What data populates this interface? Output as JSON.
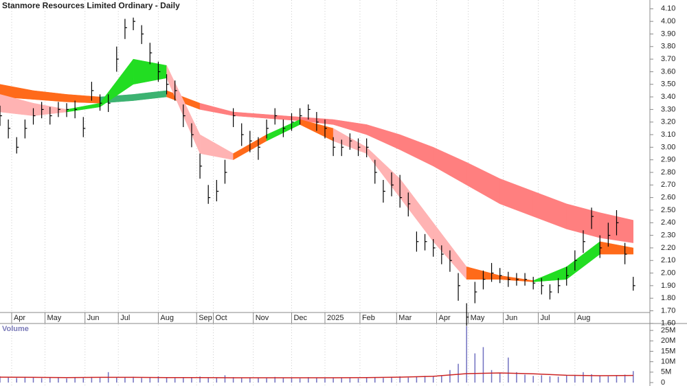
{
  "chart_data": [
    {
      "type": "ohlc",
      "title": "Stanmore Resources Limited Ordinary - Daily",
      "color": "#000000",
      "x": [
        0,
        5,
        10,
        15,
        20,
        25,
        30,
        35,
        40,
        45,
        50,
        55,
        60,
        65,
        70,
        75,
        80,
        85,
        90,
        95,
        100,
        105,
        110,
        115,
        120,
        125,
        130,
        135,
        140,
        145,
        150,
        155,
        160,
        165,
        170,
        175,
        180,
        185,
        190,
        195,
        200,
        205,
        210,
        215,
        220,
        225,
        230,
        235,
        240,
        245,
        250,
        255,
        260,
        265,
        270,
        275,
        280,
        285,
        290,
        295,
        300,
        305,
        310,
        315,
        320,
        325,
        330,
        335,
        340,
        345,
        350,
        355,
        360,
        365,
        370,
        375,
        380
      ],
      "high": [
        3.33,
        3.22,
        3.08,
        3.22,
        3.31,
        3.36,
        3.32,
        3.36,
        3.35,
        3.37,
        3.24,
        3.52,
        3.42,
        3.42,
        3.8,
        4.02,
        4.03,
        3.97,
        3.83,
        3.68,
        3.58,
        3.53,
        3.34,
        3.19,
        2.95,
        2.7,
        2.74,
        2.9,
        3.31,
        3.19,
        3.13,
        3.08,
        3.22,
        3.31,
        3.22,
        3.27,
        3.31,
        3.34,
        3.28,
        3.22,
        3.08,
        3.06,
        3.11,
        3.07,
        3.07,
        2.9,
        2.74,
        2.8,
        2.78,
        2.64,
        2.33,
        2.31,
        2.27,
        2.22,
        2.18,
        2.0,
        1.76,
        1.93,
        2.02,
        2.08,
        2.04,
        2.01,
        2.0,
        2.0,
        1.97,
        1.96,
        1.91,
        1.96,
        2.05,
        2.18,
        2.34,
        2.52,
        2.3,
        2.4,
        2.5,
        2.24,
        1.97
      ],
      "low": [
        3.17,
        3.07,
        2.95,
        3.07,
        3.18,
        3.23,
        3.18,
        3.24,
        3.24,
        3.23,
        3.08,
        3.37,
        3.29,
        3.28,
        3.6,
        3.86,
        3.93,
        3.82,
        3.66,
        3.52,
        3.42,
        3.37,
        3.16,
        3.0,
        2.75,
        2.55,
        2.57,
        2.71,
        3.16,
        3.01,
        2.96,
        2.9,
        3.07,
        3.18,
        3.08,
        3.13,
        3.18,
        3.22,
        3.13,
        3.07,
        2.93,
        2.93,
        2.98,
        2.93,
        2.92,
        2.71,
        2.56,
        2.61,
        2.52,
        2.45,
        2.17,
        2.18,
        2.13,
        2.07,
        2.01,
        1.78,
        1.58,
        1.76,
        1.87,
        1.93,
        1.92,
        1.89,
        1.9,
        1.9,
        1.87,
        1.83,
        1.79,
        1.84,
        1.9,
        2.02,
        2.16,
        2.35,
        2.12,
        2.21,
        2.3,
        2.07,
        1.86
      ],
      "close": [
        3.25,
        3.15,
        3.0,
        3.15,
        3.25,
        3.3,
        3.25,
        3.3,
        3.3,
        3.3,
        3.15,
        3.45,
        3.35,
        3.35,
        3.7,
        3.95,
        4.0,
        3.9,
        3.75,
        3.6,
        3.5,
        3.45,
        3.25,
        3.1,
        2.85,
        2.6,
        2.65,
        2.8,
        3.25,
        3.1,
        3.05,
        3.0,
        3.15,
        3.25,
        3.15,
        3.2,
        3.25,
        3.3,
        3.2,
        3.15,
        3.0,
        3.0,
        3.05,
        3.0,
        3.0,
        2.8,
        2.65,
        2.7,
        2.6,
        2.55,
        2.25,
        2.25,
        2.2,
        2.15,
        2.1,
        1.9,
        1.65,
        1.85,
        1.95,
        2.0,
        1.98,
        1.95,
        1.95,
        1.95,
        1.92,
        1.9,
        1.85,
        1.9,
        1.98,
        2.1,
        2.25,
        2.45,
        2.2,
        2.3,
        2.4,
        2.15,
        1.9
      ],
      "bands": [
        {
          "x": [
            0,
            20,
            40,
            60,
            80,
            100,
            120,
            140,
            160,
            180,
            200,
            220,
            240,
            260,
            280,
            300,
            320,
            340,
            360,
            380
          ],
          "upper": [
            3.5,
            3.45,
            3.42,
            3.4,
            3.42,
            3.45,
            3.35,
            3.28,
            3.26,
            3.24,
            3.22,
            3.18,
            3.1,
            3.0,
            2.88,
            2.75,
            2.65,
            2.55,
            2.48,
            2.42
          ],
          "lower": [
            3.4,
            3.38,
            3.36,
            3.35,
            3.37,
            3.4,
            3.3,
            3.25,
            3.23,
            3.21,
            3.18,
            3.1,
            2.98,
            2.85,
            2.7,
            2.55,
            2.45,
            2.35,
            2.28,
            2.24
          ],
          "segment_colors": [
            "#ff6a1a",
            "#ff6a1a",
            "#ff6a1a",
            "#3cb371",
            "#3cb371",
            "#ff6a1a",
            "#ff7f7f",
            "#ff7f7f",
            "#ff7f7f",
            "#ff7f7f",
            "#ff7f7f",
            "#ff7f7f",
            "#ff7f7f",
            "#ff7f7f",
            "#ff7f7f",
            "#ff7f7f",
            "#ff7f7f",
            "#ff7f7f",
            "#ff7f7f"
          ]
        },
        {
          "x": [
            0,
            20,
            40,
            60,
            80,
            100,
            120,
            140,
            160,
            180,
            200,
            220,
            240,
            260,
            280,
            300,
            320,
            340,
            360,
            380
          ],
          "upper": [
            3.42,
            3.35,
            3.3,
            3.35,
            3.7,
            3.65,
            3.1,
            2.95,
            3.1,
            3.22,
            3.15,
            3.0,
            2.75,
            2.4,
            2.05,
            1.98,
            1.94,
            2.05,
            2.25,
            2.2
          ],
          "lower": [
            3.28,
            3.25,
            3.28,
            3.32,
            3.5,
            3.55,
            2.95,
            2.9,
            3.05,
            3.18,
            3.05,
            2.95,
            2.6,
            2.25,
            1.95,
            1.95,
            1.93,
            1.95,
            2.15,
            2.15
          ],
          "segment_colors": [
            "#ffb3b3",
            "#ffb3b3",
            "#22dd22",
            "#22dd22",
            "#22dd22",
            "#ffb3b3",
            "#ffb3b3",
            "#ff6a1a",
            "#22dd22",
            "#ff6a1a",
            "#ffb3b3",
            "#ffb3b3",
            "#ffb3b3",
            "#ffb3b3",
            "#ff6a1a",
            "#ff6a1a",
            "#22dd22",
            "#22dd22",
            "#ff6a1a"
          ]
        }
      ],
      "xlim": [
        0,
        390
      ],
      "ylim": [
        1.55,
        4.17
      ],
      "xticks": [
        {
          "value": 7,
          "label": "Apr"
        },
        {
          "value": 27,
          "label": "May"
        },
        {
          "value": 51,
          "label": "Jun"
        },
        {
          "value": 71,
          "label": "Jul"
        },
        {
          "value": 95,
          "label": "Aug"
        },
        {
          "value": 118,
          "label": "Sep"
        },
        {
          "value": 128,
          "label": "Oct"
        },
        {
          "value": 152,
          "label": "Nov"
        },
        {
          "value": 175,
          "label": "Dec"
        },
        {
          "value": 195,
          "label": "2025"
        },
        {
          "value": 216,
          "label": "Feb"
        },
        {
          "value": 238,
          "label": "Mar"
        },
        {
          "value": 262,
          "label": "Apr"
        },
        {
          "value": 281,
          "label": "May"
        },
        {
          "value": 302,
          "label": "Jun"
        },
        {
          "value": 323,
          "label": "Jul"
        },
        {
          "value": 345,
          "label": "Aug"
        }
      ],
      "yticks": [
        {
          "value": 1.6,
          "label": "1.60"
        },
        {
          "value": 1.7,
          "label": "1.70"
        },
        {
          "value": 1.8,
          "label": "1.80"
        },
        {
          "value": 1.9,
          "label": "1.90"
        },
        {
          "value": 2.0,
          "label": "2.00"
        },
        {
          "value": 2.1,
          "label": "2.10"
        },
        {
          "value": 2.2,
          "label": "2.20"
        },
        {
          "value": 2.3,
          "label": "2.30"
        },
        {
          "value": 2.4,
          "label": "2.40"
        },
        {
          "value": 2.5,
          "label": "2.50"
        },
        {
          "value": 2.6,
          "label": "2.60"
        },
        {
          "value": 2.7,
          "label": "2.70"
        },
        {
          "value": 2.8,
          "label": "2.80"
        },
        {
          "value": 2.9,
          "label": "2.90"
        },
        {
          "value": 3.0,
          "label": "3.00"
        },
        {
          "value": 3.1,
          "label": "3.10"
        },
        {
          "value": 3.2,
          "label": "3.20"
        },
        {
          "value": 3.3,
          "label": "3.30"
        },
        {
          "value": 3.4,
          "label": "3.40"
        },
        {
          "value": 3.5,
          "label": "3.50"
        },
        {
          "value": 3.6,
          "label": "3.60"
        },
        {
          "value": 3.7,
          "label": "3.70"
        },
        {
          "value": 3.8,
          "label": "3.80"
        },
        {
          "value": 3.9,
          "label": "3.90"
        },
        {
          "value": 4.0,
          "label": "4.00"
        },
        {
          "value": 4.1,
          "label": "4.10"
        }
      ]
    },
    {
      "type": "bar",
      "title": "Volume",
      "color": "#7070c0",
      "x": [
        0,
        5,
        10,
        15,
        20,
        25,
        30,
        35,
        40,
        45,
        50,
        55,
        60,
        65,
        70,
        75,
        80,
        85,
        90,
        95,
        100,
        105,
        110,
        115,
        120,
        125,
        130,
        135,
        140,
        145,
        150,
        155,
        160,
        165,
        170,
        175,
        180,
        185,
        190,
        195,
        200,
        205,
        210,
        215,
        220,
        225,
        230,
        235,
        240,
        245,
        250,
        255,
        260,
        265,
        270,
        275,
        280,
        285,
        290,
        295,
        300,
        305,
        310,
        315,
        320,
        325,
        330,
        335,
        340,
        345,
        350,
        355,
        360,
        365,
        370,
        375,
        380
      ],
      "values": [
        3000000,
        2500000,
        2200000,
        2800000,
        2400000,
        2100000,
        2600000,
        2300000,
        2000000,
        2500000,
        2200000,
        2700000,
        2400000,
        5000000,
        2600000,
        2300000,
        2800000,
        2200000,
        2500000,
        3000000,
        2400000,
        2100000,
        2600000,
        2300000,
        2900000,
        2200000,
        2400000,
        3500000,
        2600000,
        2200000,
        2500000,
        2300000,
        2100000,
        2700000,
        2400000,
        2200000,
        2000000,
        2600000,
        2300000,
        2100000,
        2500000,
        2200000,
        2400000,
        2000000,
        2300000,
        2600000,
        2200000,
        2800000,
        3000000,
        2400000,
        2700000,
        3200000,
        2900000,
        3500000,
        6000000,
        9000000,
        27000000,
        14000000,
        17000000,
        6000000,
        4500000,
        12000000,
        5000000,
        3800000,
        3200000,
        3500000,
        3000000,
        2800000,
        3300000,
        3600000,
        5000000,
        4000000,
        3200000,
        3000000,
        3500000,
        3800000,
        5500000
      ],
      "average": {
        "x": [
          0,
          20,
          40,
          60,
          80,
          100,
          120,
          140,
          160,
          180,
          200,
          220,
          240,
          260,
          280,
          300,
          320,
          340,
          360,
          380
        ],
        "values": [
          2600000,
          2500000,
          2400000,
          2500000,
          2500000,
          2400000,
          2400000,
          2300000,
          2300000,
          2300000,
          2300000,
          2400000,
          2600000,
          3000000,
          4300000,
          4600000,
          4200000,
          3500000,
          3300000,
          3400000
        ],
        "color": "#cc2222"
      },
      "xlim": [
        0,
        390
      ],
      "ylim": [
        0,
        28000000
      ],
      "yticks": [
        0,
        {
          "value": 5000000,
          "label": "5M"
        },
        {
          "value": 10000000,
          "label": "10M"
        },
        {
          "value": 15000000,
          "label": "15M"
        },
        {
          "value": 20000000,
          "label": "20M"
        },
        {
          "value": 25000000,
          "label": "25M"
        }
      ]
    }
  ]
}
